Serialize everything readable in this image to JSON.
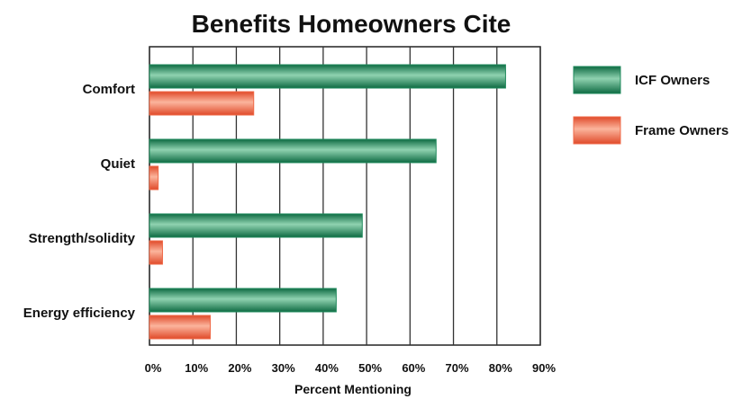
{
  "chart_data": {
    "type": "bar",
    "orientation": "horizontal",
    "title": "Benefits Homeowners Cite",
    "xlabel": "Percent Mentioning",
    "ylabel": "",
    "xlim": [
      0,
      90
    ],
    "xticks": [
      "0%",
      "10%",
      "20%",
      "30%",
      "40%",
      "50%",
      "60%",
      "70%",
      "80%",
      "90%"
    ],
    "categories": [
      "Comfort",
      "Quiet",
      "Strength/solidity",
      "Energy efficiency"
    ],
    "series": [
      {
        "name": "ICF Owners",
        "values": [
          82,
          66,
          49,
          43
        ],
        "color": "#1f8a5c"
      },
      {
        "name": "Frame Owners",
        "values": [
          24,
          2,
          3,
          14
        ],
        "color": "#ef6a48"
      }
    ],
    "grid": true,
    "legend": "right"
  }
}
